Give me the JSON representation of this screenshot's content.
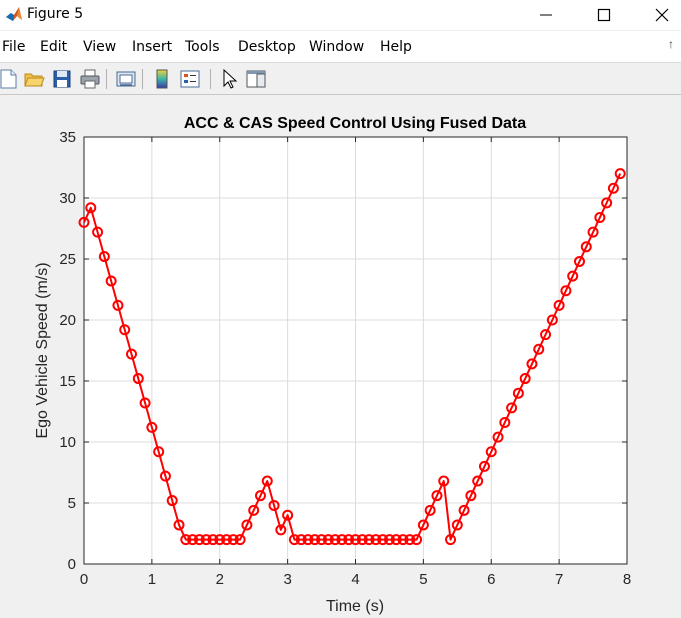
{
  "window": {
    "title": "Figure 5"
  },
  "menu": {
    "items": [
      "File",
      "Edit",
      "View",
      "Insert",
      "Tools",
      "Desktop",
      "Window",
      "Help"
    ],
    "overflow_arrow": "↑"
  },
  "toolbar": {
    "buttons": [
      "new-figure-icon",
      "open-file-icon",
      "save-icon",
      "print-icon",
      "link-plot-icon",
      "colorbar-icon",
      "legend-icon",
      "edit-plot-icon",
      "property-inspector-icon"
    ]
  },
  "colors": {
    "line": "#ff0000",
    "grid": "#dcdcdc",
    "axes_bg": "#ffffff",
    "figure_bg": "#f0f0f0"
  },
  "chart_data": {
    "type": "line",
    "title": "ACC & CAS Speed Control Using Fused Data",
    "xlabel": "Time (s)",
    "ylabel": "Ego Vehicle Speed (m/s)",
    "xlim": [
      0,
      8
    ],
    "ylim": [
      0,
      35
    ],
    "xticks": [
      "0",
      "1",
      "2",
      "3",
      "4",
      "5",
      "6",
      "7",
      "8"
    ],
    "yticks": [
      "0",
      "5",
      "10",
      "15",
      "20",
      "25",
      "30",
      "35"
    ],
    "grid": true,
    "marker": "circle",
    "series": [
      {
        "x": [
          0,
          0.1,
          0.2,
          0.3,
          0.4,
          0.5,
          0.6,
          0.7,
          0.8,
          0.9,
          1.0,
          1.1,
          1.2,
          1.3,
          1.4,
          1.5,
          1.6,
          1.7,
          1.8,
          1.9,
          2.0,
          2.1,
          2.2,
          2.3,
          2.4,
          2.5,
          2.6,
          2.7,
          2.8,
          2.9,
          3.0,
          3.1,
          3.2,
          3.3,
          3.4,
          3.5,
          3.6,
          3.7,
          3.8,
          3.9,
          4.0,
          4.1,
          4.2,
          4.3,
          4.4,
          4.5,
          4.6,
          4.7,
          4.8,
          4.9,
          5.0,
          5.1,
          5.2,
          5.3,
          5.4,
          5.5,
          5.6,
          5.7,
          5.8,
          5.9,
          6.0,
          6.1,
          6.2,
          6.3,
          6.4,
          6.5,
          6.6,
          6.7,
          6.8,
          6.9,
          7.0,
          7.1,
          7.2,
          7.3,
          7.4,
          7.5,
          7.6,
          7.7,
          7.8,
          7.9
        ],
        "values": [
          28.0,
          29.2,
          27.2,
          25.2,
          23.2,
          21.2,
          19.2,
          17.2,
          15.2,
          13.2,
          11.2,
          9.2,
          7.2,
          5.2,
          3.2,
          2.0,
          2.0,
          2.0,
          2.0,
          2.0,
          2.0,
          2.0,
          2.0,
          2.0,
          3.2,
          4.4,
          5.6,
          6.8,
          4.8,
          2.8,
          4.0,
          2.0,
          2.0,
          2.0,
          2.0,
          2.0,
          2.0,
          2.0,
          2.0,
          2.0,
          2.0,
          2.0,
          2.0,
          2.0,
          2.0,
          2.0,
          2.0,
          2.0,
          2.0,
          2.0,
          3.2,
          4.4,
          5.6,
          6.8,
          2.0,
          3.2,
          4.4,
          5.6,
          6.8,
          8.0,
          9.2,
          10.4,
          11.6,
          12.8,
          14.0,
          15.2,
          16.4,
          17.6,
          18.8,
          20.0,
          21.2,
          22.4,
          23.6,
          24.8,
          26.0,
          27.2,
          28.4,
          29.6,
          30.8,
          32.0
        ]
      }
    ]
  }
}
